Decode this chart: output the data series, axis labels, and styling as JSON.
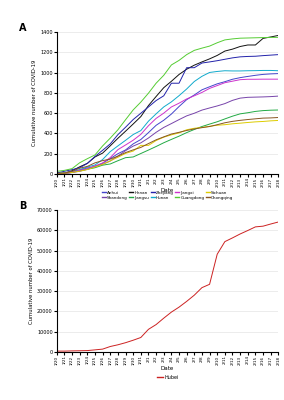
{
  "dates": [
    "2020/1/20",
    "2020/1/21",
    "2020/1/22",
    "2020/1/23",
    "2020/1/24",
    "2020/1/25",
    "2020/1/26",
    "2020/1/27",
    "2020/1/28",
    "2020/1/29",
    "2020/1/30",
    "2020/1/31",
    "2020/2/1",
    "2020/2/2",
    "2020/2/3",
    "2020/2/4",
    "2020/2/5",
    "2020/2/6",
    "2020/2/7",
    "2020/2/8",
    "2020/2/9",
    "2020/2/10",
    "2020/2/11",
    "2020/2/12",
    "2020/2/13",
    "2020/2/14",
    "2020/2/15",
    "2020/2/16",
    "2020/2/17",
    "2020/2/18"
  ],
  "series_A": {
    "Anhui": [
      1,
      6,
      15,
      39,
      60,
      70,
      106,
      152,
      200,
      237,
      297,
      340,
      408,
      480,
      530,
      591,
      665,
      733,
      779,
      830,
      860,
      889,
      910,
      934,
      950,
      962,
      973,
      982,
      987,
      990
    ],
    "Shandong": [
      2,
      5,
      15,
      27,
      46,
      78,
      95,
      128,
      177,
      230,
      275,
      307,
      355,
      411,
      459,
      497,
      536,
      573,
      599,
      630,
      651,
      671,
      694,
      726,
      748,
      756,
      758,
      760,
      763,
      768
    ],
    "Henan": [
      5,
      9,
      32,
      71,
      105,
      168,
      206,
      278,
      352,
      422,
      493,
      566,
      675,
      764,
      851,
      914,
      981,
      1033,
      1073,
      1105,
      1135,
      1169,
      1212,
      1231,
      1257,
      1272,
      1272,
      1337,
      1351,
      1366
    ],
    "Jiangsu": [
      5,
      9,
      18,
      33,
      47,
      62,
      87,
      99,
      131,
      161,
      168,
      202,
      236,
      271,
      308,
      341,
      373,
      408,
      439,
      468,
      492,
      515,
      543,
      570,
      593,
      604,
      617,
      625,
      629,
      631
    ],
    "Zhejiang": [
      10,
      27,
      43,
      62,
      104,
      173,
      234,
      297,
      388,
      461,
      537,
      599,
      661,
      724,
      771,
      895,
      895,
      1048,
      1048,
      1094,
      1105,
      1117,
      1131,
      1145,
      1155,
      1159,
      1161,
      1167,
      1172,
      1177
    ],
    "Hunan": [
      4,
      9,
      24,
      43,
      69,
      89,
      143,
      221,
      277,
      332,
      389,
      428,
      521,
      593,
      661,
      711,
      772,
      838,
      912,
      963,
      1001,
      1011,
      1018,
      1016,
      1016,
      1018,
      1019,
      1021,
      1021,
      1018
    ],
    "Jiangxi": [
      2,
      7,
      18,
      36,
      53,
      79,
      109,
      162,
      240,
      286,
      333,
      391,
      476,
      548,
      600,
      661,
      698,
      740,
      771,
      804,
      844,
      872,
      900,
      915,
      930,
      934,
      934,
      935,
      935,
      935
    ],
    "Guangdong": [
      26,
      36,
      53,
      111,
      151,
      188,
      277,
      354,
      436,
      535,
      632,
      709,
      797,
      895,
      973,
      1075,
      1120,
      1177,
      1219,
      1241,
      1261,
      1294,
      1322,
      1332,
      1339,
      1341,
      1343,
      1345,
      1347,
      1347
    ],
    "Sichuan": [
      5,
      8,
      15,
      28,
      44,
      69,
      95,
      130,
      165,
      203,
      226,
      282,
      282,
      330,
      363,
      386,
      405,
      436,
      451,
      459,
      470,
      481,
      486,
      495,
      501,
      508,
      514,
      518,
      524,
      528
    ],
    "Chongqing": [
      6,
      9,
      27,
      57,
      75,
      110,
      132,
      147,
      176,
      211,
      238,
      262,
      300,
      337,
      366,
      394,
      411,
      429,
      444,
      457,
      468,
      486,
      505,
      519,
      529,
      537,
      544,
      551,
      553,
      557
    ]
  },
  "series_colors_A": {
    "Anhui": "#4444cc",
    "Shandong": "#7744aa",
    "Henan": "#111111",
    "Jiangsu": "#22aa44",
    "Zhejiang": "#2222aa",
    "Hunan": "#11aacc",
    "Jiangxi": "#cc33cc",
    "Guangdong": "#55cc33",
    "Sichuan": "#ddcc00",
    "Chongqing": "#885522"
  },
  "hubei": [
    444,
    444,
    549,
    618,
    699,
    1052,
    1423,
    2714,
    3554,
    4586,
    5806,
    7153,
    11177,
    13522,
    16678,
    19665,
    22112,
    24953,
    28018,
    31728,
    33366,
    48206,
    54406,
    56249,
    58182,
    59882,
    61682,
    62031,
    63088,
    64084
  ],
  "ylabel_A": "Cumulative number of COVID-19",
  "ylabel_B": "Cumulative number of COVID-19",
  "xlabel": "Date",
  "panel_A_label": "A",
  "panel_B_label": "B",
  "legend_order": [
    "Anhui",
    "Shandong",
    "Henan",
    "Jiangsu",
    "Zhejiang",
    "Hunan",
    "Jiangxi",
    "Guangdong",
    "Sichuan",
    "Chongqing"
  ],
  "hubei_color": "#cc2222",
  "yticks_A": [
    0,
    200,
    400,
    600,
    800,
    1000,
    1200,
    1400
  ],
  "yticks_B": [
    0,
    10000,
    20000,
    30000,
    40000,
    50000,
    60000,
    70000
  ],
  "ylim_A": [
    0,
    1400
  ],
  "ylim_B": [
    0,
    70000
  ]
}
